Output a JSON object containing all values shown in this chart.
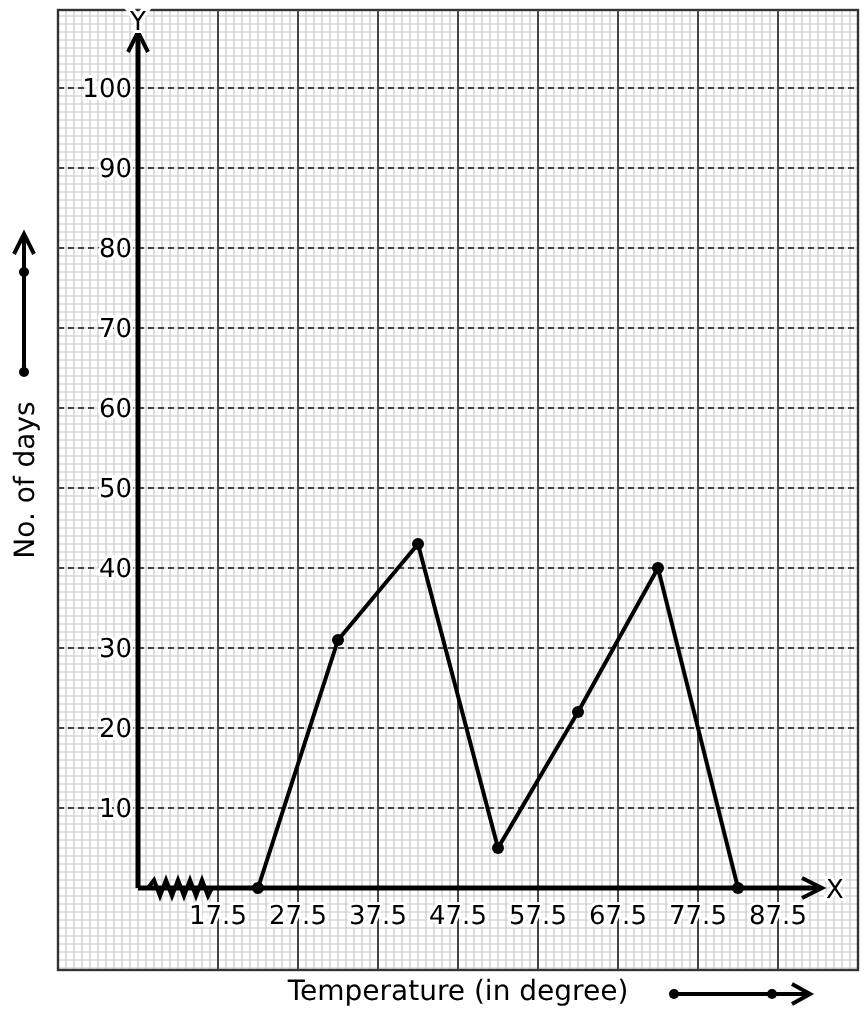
{
  "chart_data": {
    "type": "line",
    "xlabel": "Temperature (in degree)",
    "ylabel": "No. of days",
    "annotations": [
      "X",
      "Y"
    ],
    "x": [
      22.5,
      32.5,
      42.5,
      52.5,
      62.5,
      72.5,
      82.5
    ],
    "series": [
      {
        "color": "#000000",
        "values": [
          0,
          31,
          43,
          5,
          22,
          40,
          0
        ]
      }
    ],
    "xlim": [
      7.5,
      92.5
    ],
    "ylim": [
      0,
      105
    ],
    "xticks": [
      17.5,
      27.5,
      37.5,
      47.5,
      57.5,
      67.5,
      77.5,
      87.5
    ],
    "yticks": [
      10,
      20,
      30,
      40,
      50,
      60,
      70,
      80,
      90,
      100
    ],
    "grid": true,
    "marker": "circle",
    "line_style": "solid"
  }
}
